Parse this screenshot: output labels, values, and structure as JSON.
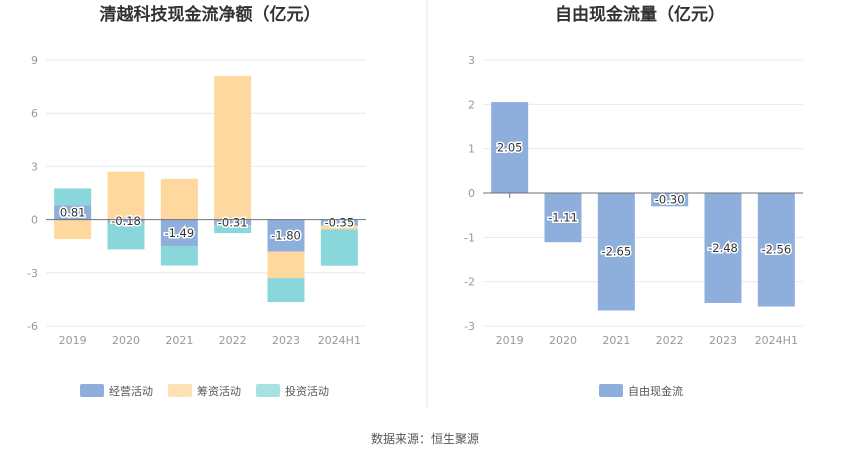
{
  "source_text": "数据来源：恒生聚源",
  "chart_data": [
    {
      "type": "bar",
      "stacked": true,
      "title": "清越科技现金流净额（亿元）",
      "categories": [
        "2019",
        "2020",
        "2021",
        "2022",
        "2023",
        "2024H1"
      ],
      "ylim": [
        -6,
        9
      ],
      "yticks": [
        "-6",
        "-3",
        "0",
        "3",
        "6",
        "9"
      ],
      "grid": true,
      "legend_position": "bottom",
      "series": [
        {
          "name": "经营活动",
          "color": "#8eaedc",
          "values": [
            0.81,
            -0.18,
            -1.49,
            -0.31,
            -1.8,
            -0.35
          ]
        },
        {
          "name": "筹资活动",
          "color": "#fed89e",
          "values": [
            -1.1,
            2.7,
            2.3,
            8.1,
            -1.5,
            -0.2
          ]
        },
        {
          "name": "投资活动",
          "color": "#8ad7db",
          "values": [
            0.95,
            -1.5,
            -1.1,
            -0.45,
            -1.35,
            -2.05
          ]
        }
      ],
      "data_labels": [
        "0.81",
        "-0.18",
        "-1.49",
        "-0.31",
        "-1.80",
        "-0.35"
      ]
    },
    {
      "type": "bar",
      "title": "自由现金流量（亿元）",
      "categories": [
        "2019",
        "2020",
        "2021",
        "2022",
        "2023",
        "2024H1"
      ],
      "ylim": [
        -3,
        3
      ],
      "yticks": [
        "-3",
        "-2",
        "-1",
        "0",
        "1",
        "2",
        "3"
      ],
      "grid": true,
      "legend_position": "bottom",
      "series": [
        {
          "name": "自由现金流",
          "color": "#8eaedc",
          "values": [
            2.05,
            -1.11,
            -2.65,
            -0.3,
            -2.48,
            -2.56
          ]
        }
      ],
      "data_labels": [
        "2.05",
        "-1.11",
        "-2.65",
        "-0.30",
        "-2.48",
        "-2.56"
      ]
    }
  ]
}
